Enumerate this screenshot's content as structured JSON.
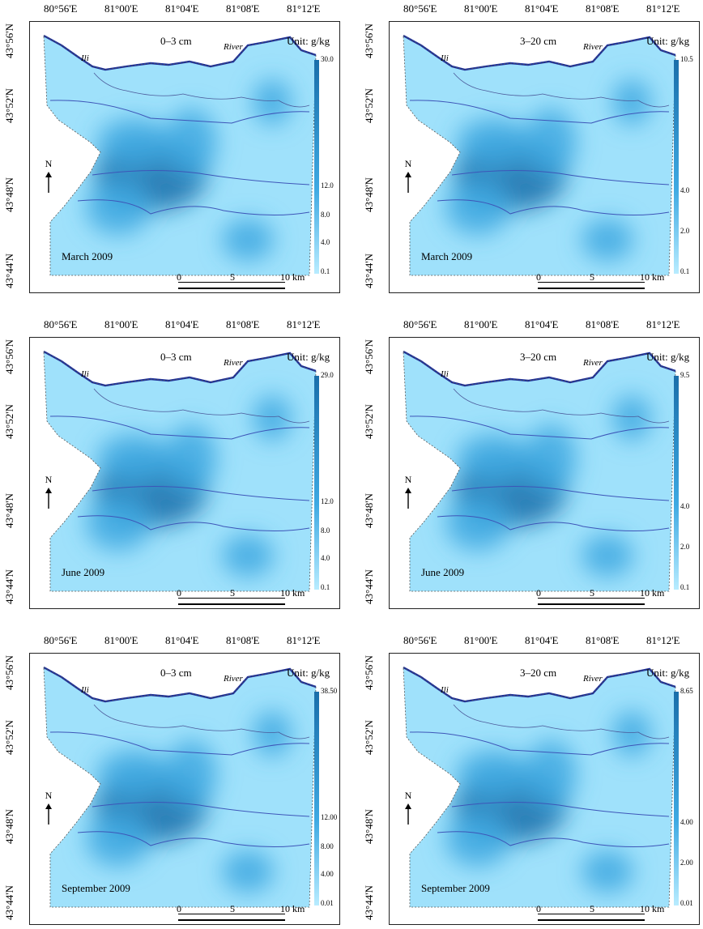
{
  "lon_labels": [
    "80°56'E",
    "81°00'E",
    "81°04'E",
    "81°08'E",
    "81°12'E"
  ],
  "lat_labels": [
    "43°56'N",
    "43°52'N",
    "43°48'N",
    "43°44'N"
  ],
  "river_words": [
    "Ili",
    "River"
  ],
  "north_label": "N",
  "unit_label": "Unit: g/kg",
  "scalebar": {
    "ticks": [
      "0",
      "5",
      "10 km"
    ]
  },
  "colors": {
    "light": "#9fe1fb",
    "mid": "#3ea9e2",
    "dark": "#1a6eaa",
    "river": "#1c2f9c",
    "contour": "#3d55b8"
  },
  "panels": [
    {
      "depth": "0–3 cm",
      "season": "March 2009",
      "legend": [
        "30.0",
        "12.0",
        "8.0",
        "4.0",
        "0.1"
      ]
    },
    {
      "depth": "3–20 cm",
      "season": "March 2009",
      "legend": [
        "10.5",
        "4.0",
        "2.0",
        "0.1"
      ]
    },
    {
      "depth": "0–3 cm",
      "season": "June 2009",
      "legend": [
        "29.0",
        "12.0",
        "8.0",
        "4.0",
        "0.1"
      ]
    },
    {
      "depth": "3–20 cm",
      "season": "June 2009",
      "legend": [
        "9.5",
        "4.0",
        "2.0",
        "0.1"
      ]
    },
    {
      "depth": "0–3 cm",
      "season": "September 2009",
      "legend": [
        "38.50",
        "12.00",
        "8.00",
        "4.00",
        "0.01"
      ]
    },
    {
      "depth": "3–20 cm",
      "season": "September 2009",
      "legend": [
        "8.65",
        "4.00",
        "2.00",
        "0.01"
      ]
    }
  ]
}
